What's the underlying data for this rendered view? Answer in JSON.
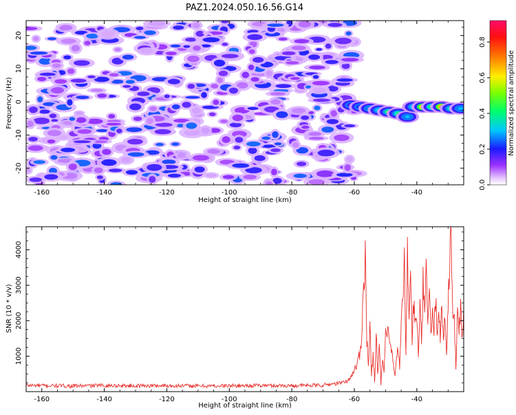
{
  "figure": {
    "title": "PAZ1.2024.050.16.56.G14"
  },
  "chart_data": [
    {
      "type": "heatmap",
      "xlabel": "Height of straight line (km)",
      "ylabel": "Frequency (Hz)",
      "xlim": [
        -165,
        -25
      ],
      "ylim": [
        -25,
        24.5
      ],
      "x_ticks": [
        -160,
        -140,
        -120,
        -100,
        -80,
        -60,
        -40
      ],
      "y_ticks": [
        -20,
        -10,
        0,
        10,
        20
      ],
      "x_tick_labels": [
        "-160",
        "-140",
        "-120",
        "-100",
        "-80",
        "-60",
        "-40"
      ],
      "y_tick_labels": [
        "-20",
        "-10",
        "0",
        "10",
        "20"
      ],
      "noise_region": {
        "x_range": [
          -165,
          -60
        ],
        "level_range": [
          0.05,
          0.25
        ]
      },
      "signal_band": [
        {
          "x": -61,
          "y": -1.0,
          "value": 0.2
        },
        {
          "x": -58,
          "y": -1.5,
          "value": 0.25
        },
        {
          "x": -55,
          "y": -2.0,
          "value": 0.3
        },
        {
          "x": -52,
          "y": -2.5,
          "value": 0.35
        },
        {
          "x": -49,
          "y": -3.0,
          "value": 0.45
        },
        {
          "x": -46,
          "y": -3.5,
          "value": 0.4
        },
        {
          "x": -43,
          "y": -4.5,
          "value": 0.3
        },
        {
          "x": -41,
          "y": -1.5,
          "value": 0.35
        },
        {
          "x": -38,
          "y": -1.5,
          "value": 0.7
        },
        {
          "x": -35,
          "y": -1.5,
          "value": 0.5
        },
        {
          "x": -32,
          "y": -1.5,
          "value": 0.75
        },
        {
          "x": -29,
          "y": -2.0,
          "value": 0.4
        },
        {
          "x": -26,
          "y": -2.0,
          "value": 0.3
        }
      ],
      "colorbar": {
        "label": "Normalized spectral amplitude",
        "range": [
          0,
          0.92
        ],
        "ticks": [
          0.0,
          0.2,
          0.4,
          0.6,
          0.8
        ],
        "tick_labels": [
          "0.0",
          "0.2",
          "0.4",
          "0.6",
          "0.8"
        ],
        "colormap": "gist_rainbow_r"
      },
      "grid": false
    },
    {
      "type": "line",
      "xlabel": "Height of straight line (km)",
      "ylabel": "SNR (10 * v/v)",
      "xlim": [
        -165,
        -25
      ],
      "ylim": [
        0,
        4650
      ],
      "x_ticks": [
        -160,
        -140,
        -120,
        -100,
        -80,
        -60,
        -40
      ],
      "y_ticks": [
        1000,
        2000,
        3000,
        4000
      ],
      "x_tick_labels": [
        "-160",
        "-140",
        "-120",
        "-100",
        "-80",
        "-60",
        "-40"
      ],
      "y_tick_labels": [
        "1000",
        "2000",
        "3000",
        "4000"
      ],
      "line_color": "#e8302c",
      "grid": false,
      "series": [
        {
          "x": [
            -165,
            -160,
            -150,
            -140,
            -130,
            -120,
            -110,
            -100,
            -90,
            -80,
            -70,
            -64,
            -62,
            -61,
            -60,
            -59,
            -58,
            -57.5,
            -57,
            -56.5,
            -56,
            -55.5,
            -55,
            -54.5,
            -54,
            -53.5,
            -53,
            -52.5,
            -52,
            -51.5,
            -51,
            -50.5,
            -50,
            -49,
            -48,
            -47,
            -46,
            -45.5,
            -45,
            -44.5,
            -44,
            -43.5,
            -43,
            -42.5,
            -42,
            -41.5,
            -41,
            -40.5,
            -40,
            -39.5,
            -39,
            -38.5,
            -38,
            -37.5,
            -37,
            -36.5,
            -36,
            -35.5,
            -35,
            -34.5,
            -34,
            -33.5,
            -33,
            -32.5,
            -32,
            -31.5,
            -31,
            -30.5,
            -30,
            -29.5,
            -29,
            -28.5,
            -28,
            -27.5,
            -27,
            -26.5,
            -26,
            -25.5,
            -25
          ],
          "y": [
            180,
            170,
            160,
            175,
            165,
            170,
            160,
            165,
            175,
            170,
            180,
            250,
            300,
            450,
            600,
            800,
            1200,
            2000,
            3000,
            4050,
            1500,
            700,
            1800,
            400,
            1100,
            300,
            1600,
            600,
            1300,
            200,
            900,
            500,
            1700,
            1500,
            1100,
            400,
            1300,
            700,
            1800,
            2500,
            3800,
            1200,
            3800,
            2000,
            3600,
            1400,
            2600,
            1800,
            2200,
            900,
            2400,
            1300,
            3000,
            2000,
            3600,
            2100,
            2700,
            1500,
            2300,
            1700,
            2600,
            1800,
            2400,
            1600,
            2200,
            1500,
            2200,
            1100,
            2500,
            3600,
            4650,
            2100,
            1900,
            700,
            2200,
            1800,
            2400,
            1500,
            2400
          ]
        }
      ]
    }
  ]
}
